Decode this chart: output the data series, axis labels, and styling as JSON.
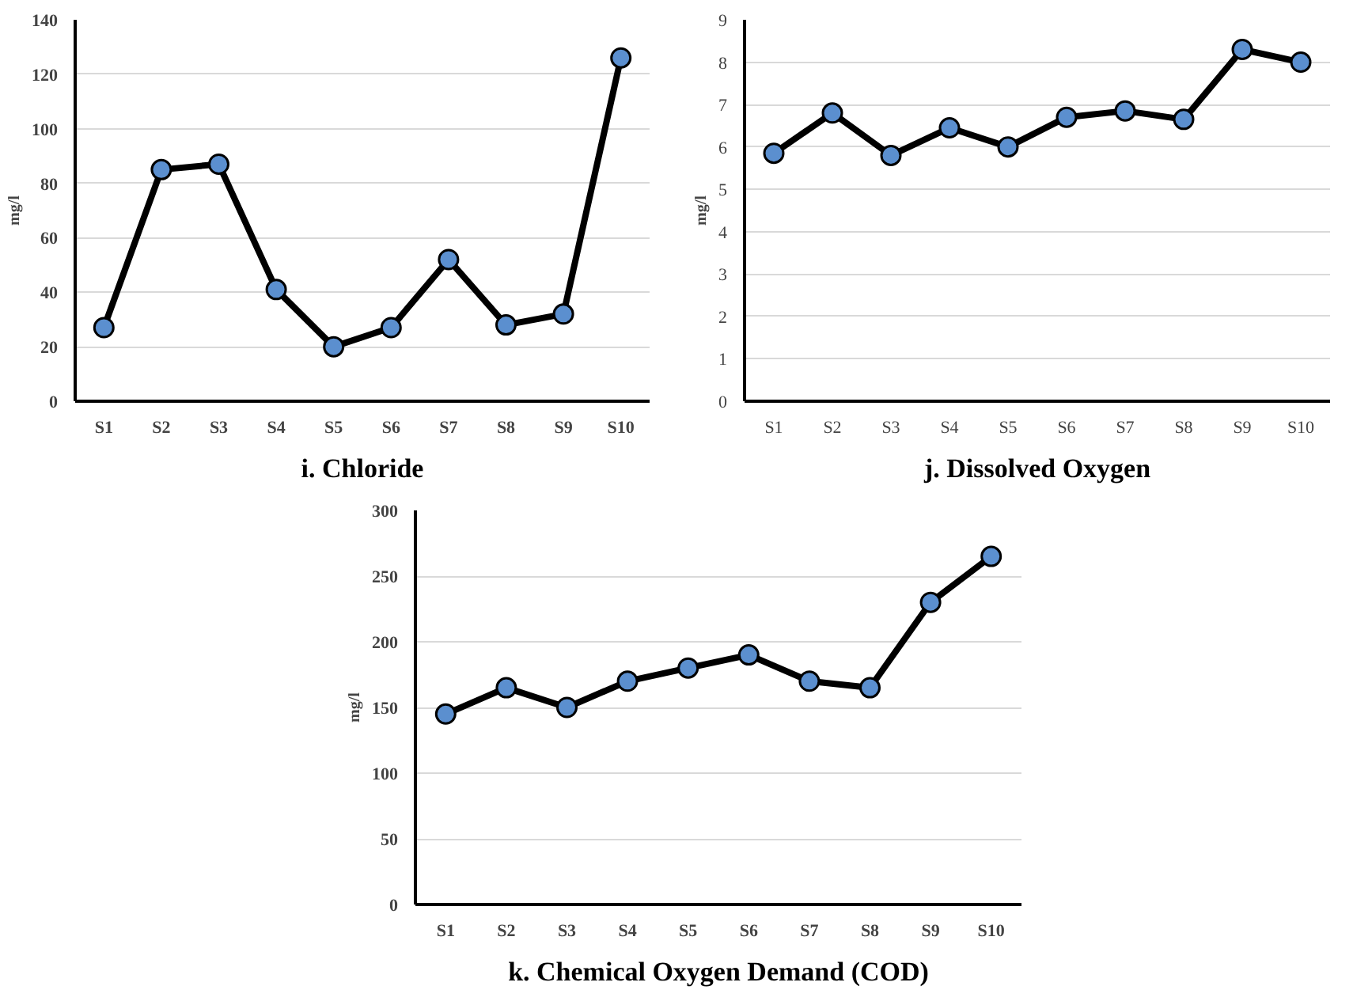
{
  "chart_data": [
    {
      "type": "line",
      "title": "i. Chloride",
      "ylabel": "mg/l",
      "categories": [
        "S1",
        "S2",
        "S3",
        "S4",
        "S5",
        "S6",
        "S7",
        "S8",
        "S9",
        "S10"
      ],
      "series": [
        {
          "color": "#000000",
          "values": [
            27,
            85,
            87,
            41,
            20,
            27,
            52,
            28,
            32,
            126
          ]
        }
      ],
      "ylim": [
        0,
        140
      ],
      "yticks": [
        0,
        20,
        40,
        60,
        80,
        100,
        120,
        140
      ],
      "grid": "y",
      "marker": "circle",
      "line_style": "solid"
    },
    {
      "type": "line",
      "title": "j. Dissolved Oxygen",
      "ylabel": "mg/l",
      "categories": [
        "S1",
        "S2",
        "S3",
        "S4",
        "S5",
        "S6",
        "S7",
        "S8",
        "S9",
        "S10"
      ],
      "series": [
        {
          "color": "#000000",
          "values": [
            5.85,
            6.8,
            5.8,
            6.45,
            6.0,
            6.7,
            6.85,
            6.65,
            8.3,
            8.0
          ]
        }
      ],
      "ylim": [
        0,
        9
      ],
      "yticks": [
        0,
        1,
        2,
        3,
        4,
        5,
        6,
        7,
        8,
        9
      ],
      "grid": "y",
      "marker": "circle",
      "line_style": "solid"
    },
    {
      "type": "line",
      "title": "k. Chemical Oxygen Demand (COD)",
      "ylabel": "mg/l",
      "categories": [
        "S1",
        "S2",
        "S3",
        "S4",
        "S5",
        "S6",
        "S7",
        "S8",
        "S9",
        "S10"
      ],
      "series": [
        {
          "color": "#000000",
          "values": [
            145,
            165,
            150,
            170,
            180,
            190,
            170,
            165,
            230,
            265
          ]
        }
      ],
      "ylim": [
        0,
        300
      ],
      "yticks": [
        0,
        50,
        100,
        150,
        200,
        250,
        300
      ],
      "grid": "y",
      "marker": "circle",
      "line_style": "solid"
    }
  ]
}
